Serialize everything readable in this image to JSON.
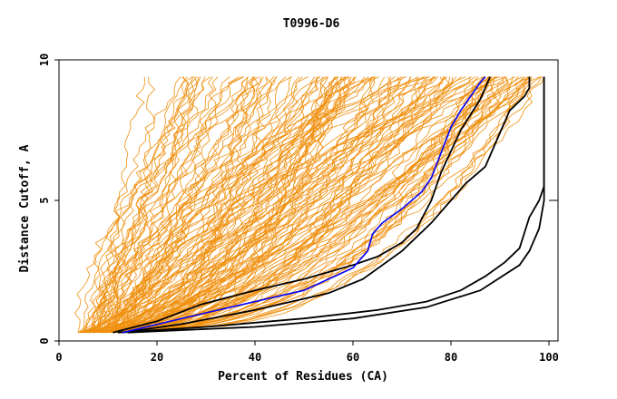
{
  "chart_data": {
    "type": "line",
    "title": "T0996-D6",
    "xlabel": "Percent of Residues (CA)",
    "ylabel": "Distance Cutoff, A",
    "xlim": [
      0,
      100
    ],
    "ylim": [
      0,
      10
    ],
    "xticks": [
      0,
      20,
      40,
      60,
      80,
      100
    ],
    "yticks": [
      0,
      5,
      10
    ],
    "grid": false,
    "legend": "none",
    "colors": {
      "background_series": "#f0900f",
      "highlight_series": "#000000",
      "selected_series": "#0000ff",
      "axis": "#000000"
    },
    "highlight_series": [
      {
        "points": [
          [
            11,
            0.3
          ],
          [
            20,
            0.7
          ],
          [
            29,
            1.3
          ],
          [
            40,
            1.8
          ],
          [
            50,
            2.2
          ],
          [
            60,
            2.7
          ],
          [
            65,
            3.0
          ],
          [
            70,
            3.5
          ],
          [
            73,
            4.0
          ],
          [
            76,
            5.0
          ],
          [
            78,
            6.0
          ],
          [
            82,
            7.5
          ],
          [
            86,
            8.6
          ],
          [
            88,
            9.4
          ]
        ]
      },
      {
        "points": [
          [
            13,
            0.3
          ],
          [
            25,
            0.6
          ],
          [
            40,
            1.1
          ],
          [
            55,
            1.7
          ],
          [
            62,
            2.2
          ],
          [
            70,
            3.2
          ],
          [
            76,
            4.2
          ],
          [
            80,
            5.0
          ],
          [
            83,
            5.6
          ],
          [
            87,
            6.2
          ],
          [
            89,
            7.0
          ],
          [
            92,
            8.2
          ],
          [
            95,
            8.7
          ],
          [
            96,
            9.0
          ],
          [
            96,
            9.4
          ]
        ]
      },
      {
        "points": [
          [
            12,
            0.3
          ],
          [
            30,
            0.5
          ],
          [
            50,
            0.8
          ],
          [
            65,
            1.1
          ],
          [
            75,
            1.4
          ],
          [
            82,
            1.8
          ],
          [
            87,
            2.3
          ],
          [
            91,
            2.8
          ],
          [
            94,
            3.3
          ],
          [
            96,
            4.4
          ],
          [
            98,
            5.0
          ],
          [
            99,
            5.5
          ],
          [
            99,
            9.4
          ]
        ]
      },
      {
        "points": [
          [
            14,
            0.3
          ],
          [
            40,
            0.5
          ],
          [
            60,
            0.8
          ],
          [
            75,
            1.2
          ],
          [
            86,
            1.8
          ],
          [
            94,
            2.7
          ],
          [
            96,
            3.2
          ],
          [
            98,
            4.0
          ],
          [
            99,
            5.0
          ],
          [
            99,
            9.4
          ]
        ]
      }
    ],
    "selected_series": {
      "points": [
        [
          13,
          0.3
        ],
        [
          30,
          1.0
        ],
        [
          50,
          1.8
        ],
        [
          60,
          2.6
        ],
        [
          63,
          3.2
        ],
        [
          64,
          3.8
        ],
        [
          66,
          4.2
        ],
        [
          70,
          4.7
        ],
        [
          74,
          5.3
        ],
        [
          76,
          5.8
        ],
        [
          78,
          6.7
        ],
        [
          80,
          7.6
        ],
        [
          82,
          8.2
        ],
        [
          86,
          9.2
        ],
        [
          87,
          9.4
        ]
      ]
    }
  }
}
